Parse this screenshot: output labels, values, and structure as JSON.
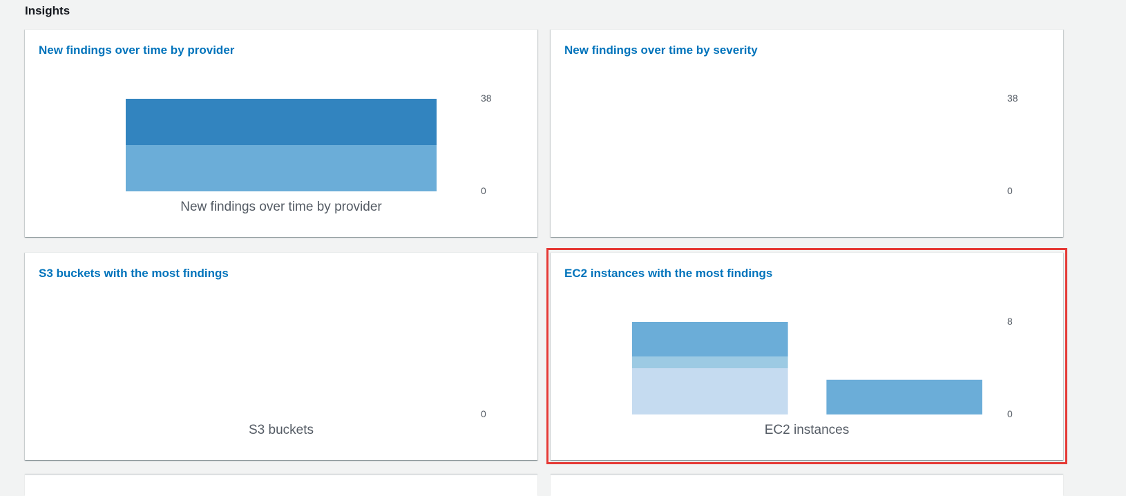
{
  "section": {
    "title": "Insights"
  },
  "cards": [
    {
      "title": "New findings over time by provider",
      "highlighted": false,
      "chart_data": {
        "type": "bar",
        "stacked": true,
        "xlabel": "New findings over time by provider",
        "y_tick_labels": [
          "38",
          "0"
        ],
        "ylim": [
          0,
          38
        ],
        "categories": [
          ""
        ],
        "series": [
          {
            "color": "#6badd8",
            "values": [
              19
            ]
          },
          {
            "color": "#3284bf",
            "values": [
              19
            ]
          }
        ]
      }
    },
    {
      "title": "New findings over time by severity",
      "highlighted": false,
      "chart_data": {
        "type": "bar",
        "stacked": true,
        "xlabel": "",
        "y_tick_labels": [
          "38",
          "0"
        ],
        "ylim": [
          0,
          38
        ],
        "categories": [],
        "series": []
      }
    },
    {
      "title": "S3 buckets with the most findings",
      "highlighted": false,
      "chart_data": {
        "type": "bar",
        "stacked": true,
        "xlabel": "S3 buckets",
        "y_tick_labels": [
          "0"
        ],
        "ylim": [
          0,
          1
        ],
        "categories": [],
        "series": []
      }
    },
    {
      "title": "EC2 instances with the most findings",
      "highlighted": true,
      "chart_data": {
        "type": "bar",
        "stacked": true,
        "xlabel": "EC2 instances",
        "y_tick_labels": [
          "8",
          "0"
        ],
        "ylim": [
          0,
          8
        ],
        "categories": [
          "",
          ""
        ],
        "series": [
          {
            "color": "#c5dbf0",
            "values": [
              4,
              0
            ]
          },
          {
            "color": "#9ccae3",
            "values": [
              1,
              0
            ]
          },
          {
            "color": "#6badd8",
            "values": [
              3,
              3
            ]
          }
        ]
      }
    }
  ]
}
